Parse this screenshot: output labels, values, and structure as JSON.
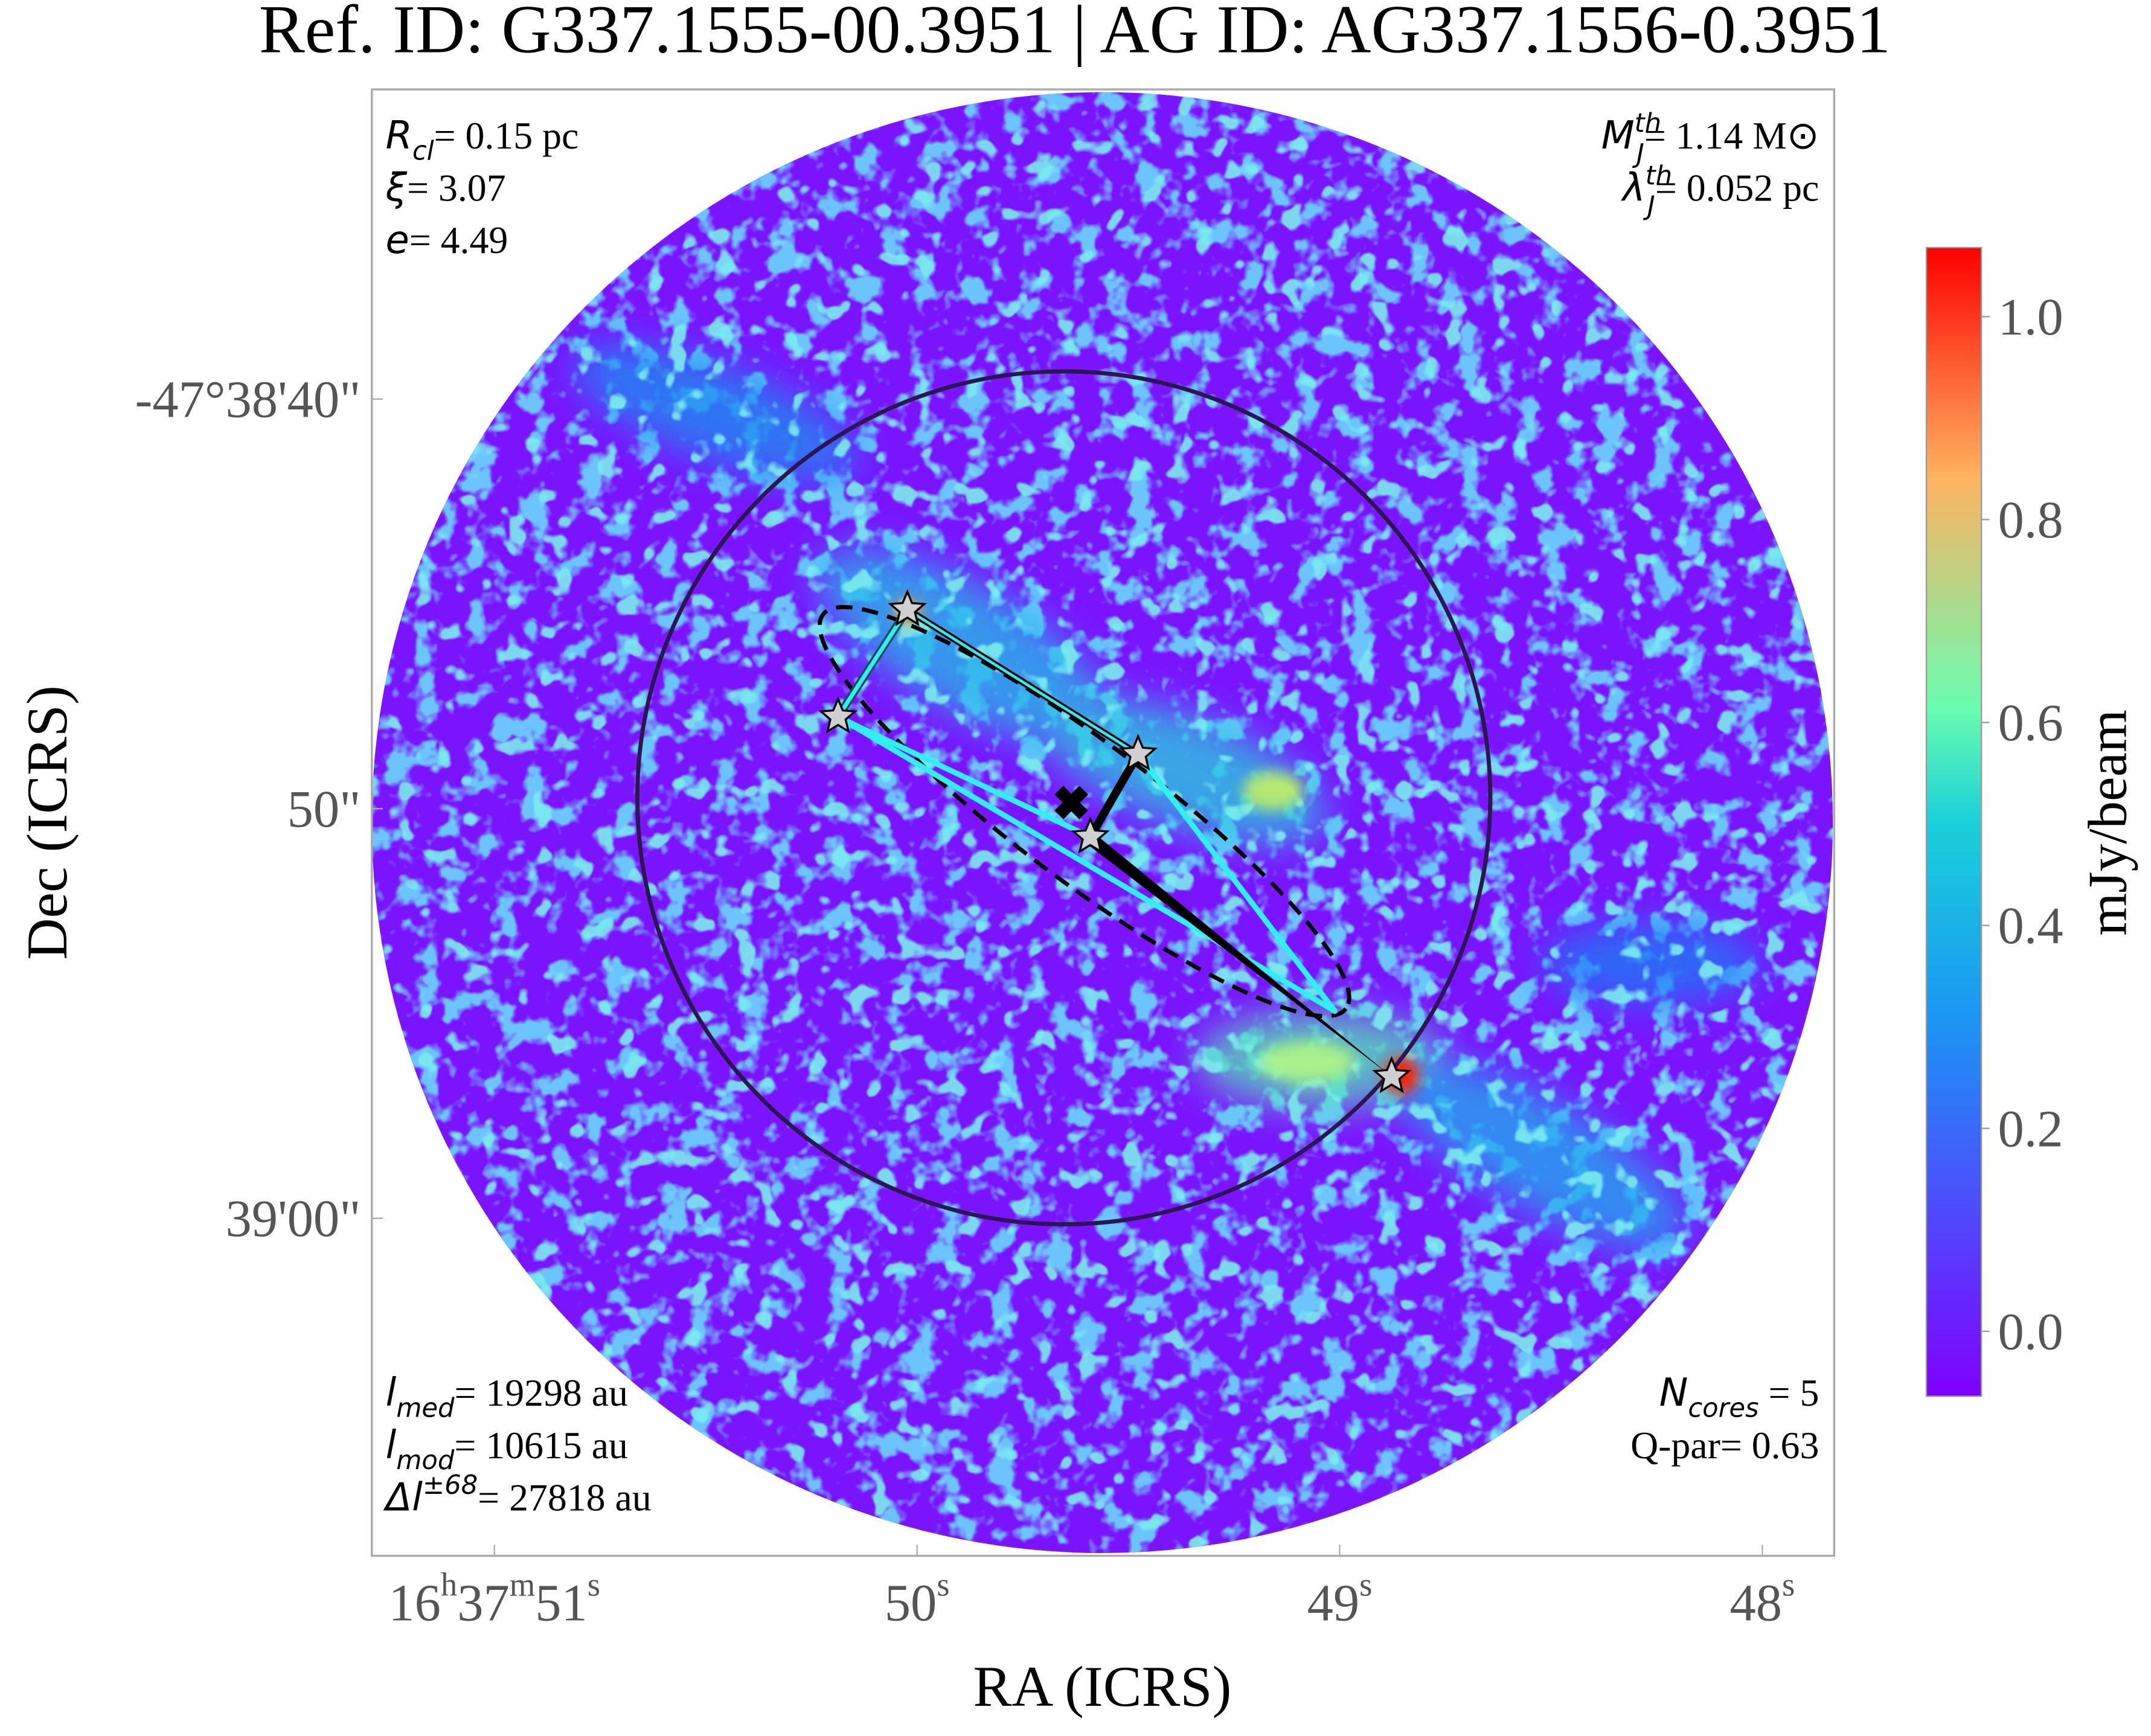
{
  "chart_data": {
    "type": "image",
    "title": "Ref. ID: G337.1555-00.3951 | AG ID: AG337.1556-0.3951",
    "xlabel": "RA (ICRS)",
    "ylabel": "Dec (ICRS)",
    "xlim": [
      51.29,
      47.83
    ],
    "ylim": [
      32.44,
      68.24
    ],
    "xticks": [
      {
        "value": 51,
        "label": "16h37m51s"
      },
      {
        "value": 50,
        "label": "50s"
      },
      {
        "value": 49,
        "label": "49s"
      },
      {
        "value": 48,
        "label": "48s"
      }
    ],
    "yticks": [
      {
        "value": 40,
        "label": "-47°38'40\""
      },
      {
        "value": 50,
        "label": "50\""
      },
      {
        "value": 60,
        "label": "39'00\""
      }
    ],
    "cores": {
      "x": [
        50.023,
        50.187,
        49.477,
        49.59,
        48.877
      ],
      "y": [
        45.14,
        47.76,
        48.67,
        50.69,
        56.54
      ]
    },
    "centroid": {
      "x": 49.635,
      "y": 49.85
    },
    "annotations_top_left": [
      {
        "symbol": "R",
        "sub": "cl",
        "text": "= 0.15 pc"
      },
      {
        "symbol": "ξ",
        "text": "= 3.07"
      },
      {
        "symbol": "e",
        "text": "= 4.49"
      }
    ],
    "annotations_top_right": [
      {
        "symbol": "M",
        "sub": "J",
        "sup": "th",
        "text": "= 1.14 M⊙"
      },
      {
        "symbol": "λ",
        "sub": "J",
        "sup": "th",
        "text": "= 0.052 pc"
      }
    ],
    "annotations_bottom_left": [
      {
        "symbol": "l",
        "sub": "med",
        "text": "= 19298 au"
      },
      {
        "symbol": "l",
        "sub": "mod",
        "text": "= 10615 au"
      },
      {
        "symbol": "Δl",
        "sup": "±68",
        "text": "= 27818 au"
      }
    ],
    "annotations_bottom_right": [
      {
        "symbol": "N",
        "sub": "cores",
        "text": " = 5"
      },
      {
        "symbol": "Q-par",
        "text": "= 0.63"
      }
    ],
    "colorbar": {
      "label": "mJy/beam",
      "lim": [
        -0.064,
        1.068
      ],
      "ticks": [
        {
          "value": 0,
          "label": "0.0"
        },
        {
          "value": 0.2,
          "label": "0.2"
        },
        {
          "value": 0.4,
          "label": "0.4"
        },
        {
          "value": 0.6,
          "label": "0.6"
        },
        {
          "value": 0.8,
          "label": "0.8"
        },
        {
          "value": 1,
          "label": "1.0"
        }
      ]
    }
  }
}
